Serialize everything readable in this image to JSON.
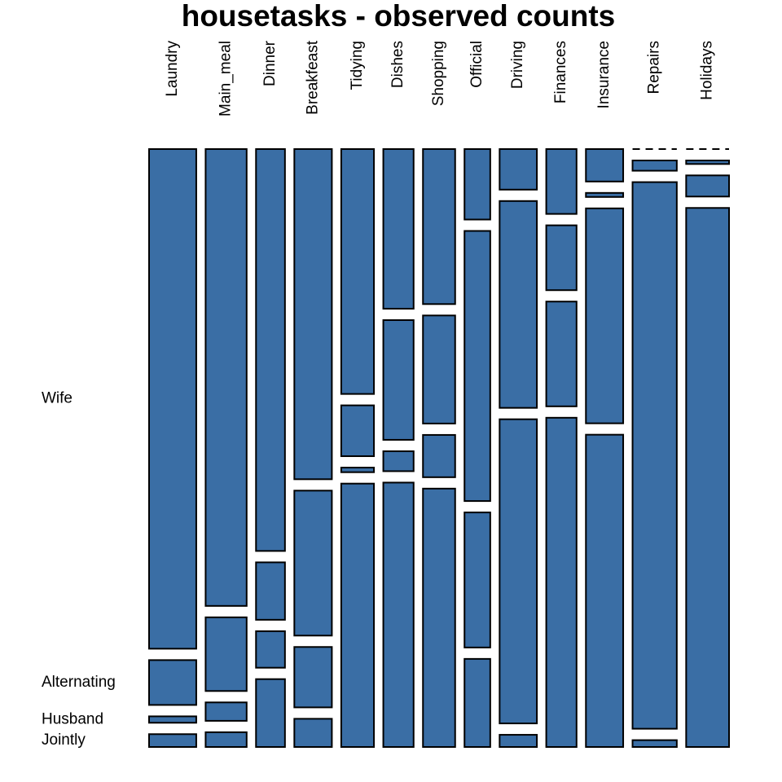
{
  "chart_data": {
    "type": "mosaic",
    "title": "housetasks - observed counts",
    "categories": [
      "Laundry",
      "Main_meal",
      "Dinner",
      "Breakfeast",
      "Tidying",
      "Dishes",
      "Shopping",
      "Official",
      "Driving",
      "Finances",
      "Insurance",
      "Repairs",
      "Holidays"
    ],
    "color": "#3a6ea5",
    "series": [
      {
        "name": "Wife",
        "values": [
          156,
          124,
          77,
          82,
          53,
          32,
          33,
          12,
          10,
          13,
          8,
          0,
          0
        ]
      },
      {
        "name": "Alternating",
        "values": [
          14,
          20,
          11,
          36,
          11,
          24,
          23,
          46,
          51,
          13,
          1,
          3,
          1
        ]
      },
      {
        "name": "Husband",
        "values": [
          2,
          5,
          7,
          15,
          1,
          4,
          9,
          23,
          75,
          21,
          53,
          160,
          6
        ]
      },
      {
        "name": "Jointly",
        "values": [
          4,
          4,
          13,
          7,
          57,
          53,
          55,
          15,
          3,
          66,
          77,
          2,
          153
        ]
      }
    ]
  }
}
